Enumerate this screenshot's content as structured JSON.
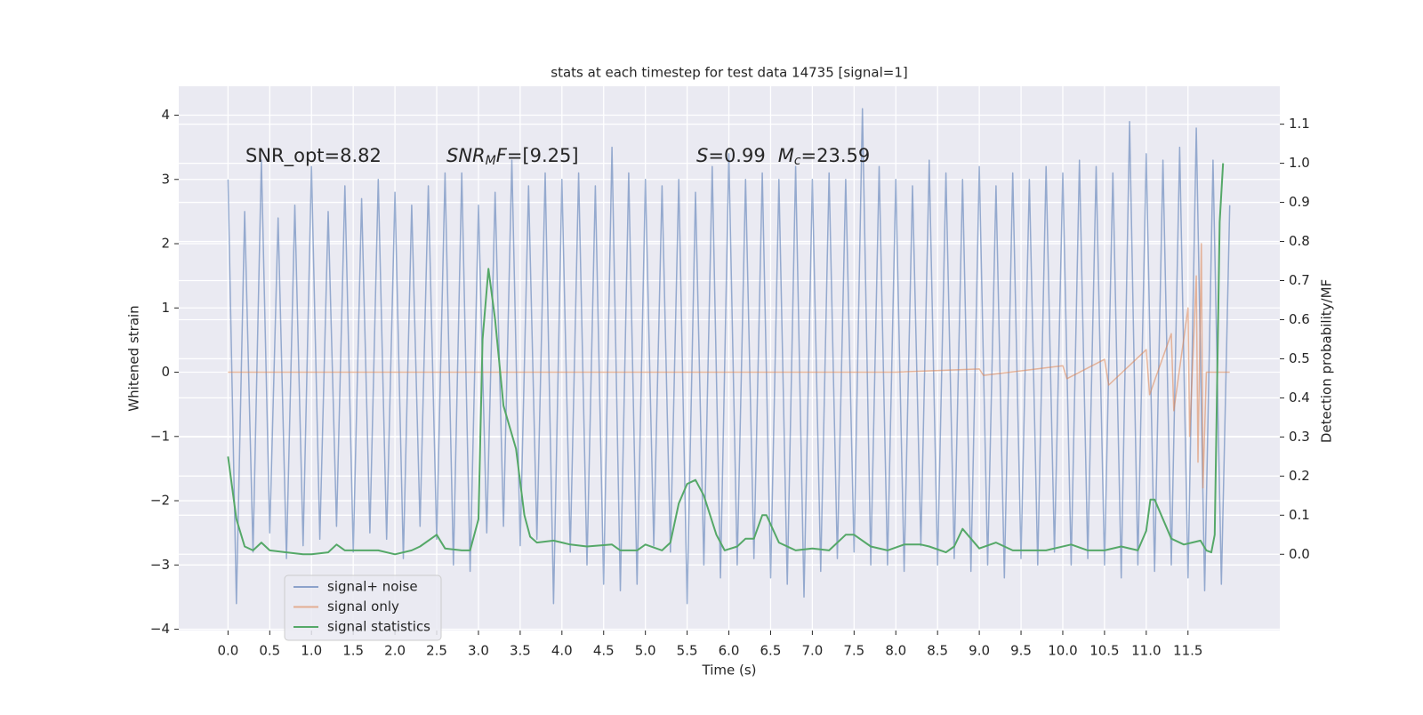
{
  "chart_data": {
    "type": "line",
    "title": "stats at each timestep for test data 14735 [signal=1]",
    "xlabel": "Time (s)",
    "ylabel": "Whitened strain",
    "y2label": "Detection probability/MF",
    "annotations": [
      [
        "SNR_opt=8.82"
      ],
      [
        "SNR",
        "M",
        "F",
        "=[9.25]"
      ],
      [
        "S",
        "=0.99",
        "M",
        "c",
        "=23.59"
      ]
    ],
    "grid": true,
    "legend": "lower left",
    "background": "#eaeaf2",
    "xlim": [
      -0.59,
      12.6
    ],
    "ylim": [
      -4.02,
      4.45
    ],
    "y2lim": [
      -0.195,
      1.197
    ],
    "xticks": [
      {
        "value": 0,
        "label": "0.0"
      },
      0.5,
      {
        "value": 1,
        "label": "1.0"
      },
      1.5,
      {
        "value": 2,
        "label": "2.0"
      },
      2.5,
      {
        "value": 3,
        "label": "3.0"
      },
      3.5,
      {
        "value": 4,
        "label": "4.0"
      },
      4.5,
      {
        "value": 5,
        "label": "5.0"
      },
      5.5,
      {
        "value": 6,
        "label": "6.0"
      },
      6.5,
      {
        "value": 7,
        "label": "7.0"
      },
      7.5,
      {
        "value": 8,
        "label": "8.0"
      },
      8.5,
      {
        "value": 9,
        "label": "9.0"
      },
      9.5,
      {
        "value": 10,
        "label": "10.0"
      },
      10.5,
      {
        "value": 11,
        "label": "11.0"
      },
      11.5
    ],
    "yticks": [
      {
        "value": -4,
        "label": "−4"
      },
      {
        "value": -3,
        "label": "−3"
      },
      {
        "value": -2,
        "label": "−2"
      },
      {
        "value": -1,
        "label": "−1"
      },
      0,
      1,
      2,
      3,
      4
    ],
    "y2ticks": [
      {
        "value": 0,
        "label": "0.0"
      },
      0.1,
      0.2,
      0.3,
      0.4,
      0.5,
      0.6,
      0.7,
      0.8,
      0.9,
      {
        "value": 1,
        "label": "1.0"
      },
      1.1
    ],
    "series": [
      {
        "name": "signal+ noise",
        "color": "#4c72b0",
        "x": [
          0,
          0.1,
          0.2,
          0.3,
          0.4,
          0.5,
          0.6,
          0.7,
          0.8,
          0.9,
          1,
          1.1,
          1.2,
          1.3,
          1.4,
          1.5,
          1.6,
          1.7,
          1.8,
          1.9,
          2,
          2.1,
          2.2,
          2.3,
          2.4,
          2.5,
          2.6,
          2.7,
          2.8,
          2.9,
          3,
          3.1,
          3.2,
          3.3,
          3.4,
          3.5,
          3.6,
          3.7,
          3.8,
          3.9,
          4,
          4.1,
          4.2,
          4.3,
          4.4,
          4.5,
          4.6,
          4.7,
          4.8,
          4.9,
          5,
          5.1,
          5.2,
          5.3,
          5.4,
          5.5,
          5.6,
          5.7,
          5.8,
          5.9,
          6,
          6.1,
          6.2,
          6.3,
          6.4,
          6.5,
          6.6,
          6.7,
          6.8,
          6.9,
          7,
          7.1,
          7.2,
          7.3,
          7.4,
          7.5,
          7.6,
          7.7,
          7.8,
          7.9,
          8,
          8.1,
          8.2,
          8.3,
          8.4,
          8.5,
          8.6,
          8.7,
          8.8,
          8.9,
          9,
          9.1,
          9.2,
          9.3,
          9.4,
          9.5,
          9.6,
          9.7,
          9.8,
          9.9,
          10,
          10.1,
          10.2,
          10.3,
          10.4,
          10.5,
          10.6,
          10.7,
          10.8,
          10.9,
          11,
          11.1,
          11.2,
          11.3,
          11.4,
          11.5,
          11.6,
          11.7,
          11.8,
          11.9,
          12
        ],
        "values": [
          3.0,
          -3.6,
          2.5,
          -2.8,
          3.3,
          -2.5,
          2.4,
          -2.9,
          2.6,
          -2.7,
          3.2,
          -2.6,
          2.5,
          -2.4,
          2.9,
          -2.8,
          2.7,
          -2.5,
          3.0,
          -2.6,
          2.8,
          -2.9,
          2.6,
          -2.4,
          2.9,
          -2.6,
          3.1,
          -3.0,
          3.1,
          -3.1,
          2.6,
          -2.5,
          2.8,
          -2.4,
          3.3,
          -2.7,
          2.9,
          -2.6,
          3.1,
          -3.6,
          3.0,
          -2.8,
          3.1,
          -3.0,
          2.9,
          -3.3,
          3.5,
          -3.4,
          3.1,
          -3.3,
          3.0,
          -2.7,
          2.9,
          -2.8,
          3.0,
          -3.6,
          2.8,
          -3.0,
          3.2,
          -3.2,
          3.4,
          -3.0,
          3.0,
          -2.9,
          3.1,
          -3.2,
          3.0,
          -3.3,
          3.2,
          -3.5,
          3.0,
          -3.1,
          3.1,
          -2.9,
          3.0,
          -2.8,
          4.1,
          -3.0,
          3.2,
          -3.0,
          3.0,
          -3.1,
          2.9,
          -2.7,
          3.3,
          -3.0,
          3.1,
          -2.9,
          3.0,
          -3.1,
          3.2,
          -3.0,
          2.9,
          -3.2,
          3.1,
          -2.9,
          3.0,
          -3.0,
          3.2,
          -2.8,
          3.1,
          -3.0,
          3.3,
          -2.9,
          3.2,
          -3.0,
          3.1,
          -3.2,
          3.9,
          -3.0,
          3.4,
          -3.1,
          3.3,
          -3.0,
          3.5,
          -3.2,
          3.8,
          -3.4,
          3.3,
          -3.3,
          2.6
        ]
      },
      {
        "name": "signal only",
        "color": "#dd8452",
        "x": [
          0,
          8,
          9,
          9.05,
          10,
          10.05,
          10.5,
          10.55,
          11,
          11.04,
          11.3,
          11.33,
          11.5,
          11.52,
          11.6,
          11.62,
          11.66,
          11.68,
          11.72,
          12
        ],
        "values": [
          0,
          0,
          0.05,
          -0.05,
          0.1,
          -0.1,
          0.2,
          -0.2,
          0.35,
          -0.35,
          0.6,
          -0.6,
          1.0,
          -1.0,
          1.5,
          -1.4,
          2.0,
          -1.8,
          0,
          0
        ]
      },
      {
        "name": "signal statistics",
        "color": "#55a868",
        "axis": "y2",
        "x": [
          0,
          0.1,
          0.2,
          0.3,
          0.4,
          0.5,
          0.7,
          0.9,
          1,
          1.2,
          1.3,
          1.4,
          1.6,
          1.8,
          2,
          2.2,
          2.3,
          2.5,
          2.6,
          2.8,
          2.9,
          3,
          3.05,
          3.12,
          3.2,
          3.3,
          3.45,
          3.55,
          3.62,
          3.7,
          3.9,
          4.1,
          4.3,
          4.6,
          4.7,
          4.9,
          5,
          5.2,
          5.3,
          5.4,
          5.5,
          5.6,
          5.7,
          5.85,
          5.95,
          6.1,
          6.2,
          6.3,
          6.4,
          6.45,
          6.6,
          6.8,
          7,
          7.2,
          7.4,
          7.5,
          7.7,
          7.9,
          8.1,
          8.3,
          8.4,
          8.6,
          8.7,
          8.8,
          9,
          9.2,
          9.4,
          9.8,
          10.1,
          10.3,
          10.5,
          10.7,
          10.9,
          11,
          11.05,
          11.1,
          11.3,
          11.45,
          11.55,
          11.65,
          11.72,
          11.78,
          11.82,
          11.88,
          11.92
        ],
        "values": [
          0.25,
          0.09,
          0.02,
          0.01,
          0.03,
          0.01,
          0.005,
          0,
          0,
          0.005,
          0.025,
          0.01,
          0.01,
          0.01,
          0,
          0.01,
          0.02,
          0.05,
          0.015,
          0.01,
          0.01,
          0.09,
          0.55,
          0.73,
          0.6,
          0.38,
          0.27,
          0.1,
          0.045,
          0.03,
          0.035,
          0.025,
          0.02,
          0.025,
          0.01,
          0.01,
          0.025,
          0.01,
          0.03,
          0.13,
          0.18,
          0.19,
          0.15,
          0.05,
          0.01,
          0.02,
          0.04,
          0.04,
          0.1,
          0.1,
          0.03,
          0.01,
          0.015,
          0.01,
          0.05,
          0.05,
          0.02,
          0.01,
          0.025,
          0.025,
          0.02,
          0.005,
          0.02,
          0.065,
          0.015,
          0.03,
          0.01,
          0.01,
          0.025,
          0.01,
          0.01,
          0.02,
          0.01,
          0.06,
          0.14,
          0.14,
          0.04,
          0.025,
          0.03,
          0.035,
          0.01,
          0.005,
          0.05,
          0.85,
          1.0
        ]
      }
    ]
  }
}
